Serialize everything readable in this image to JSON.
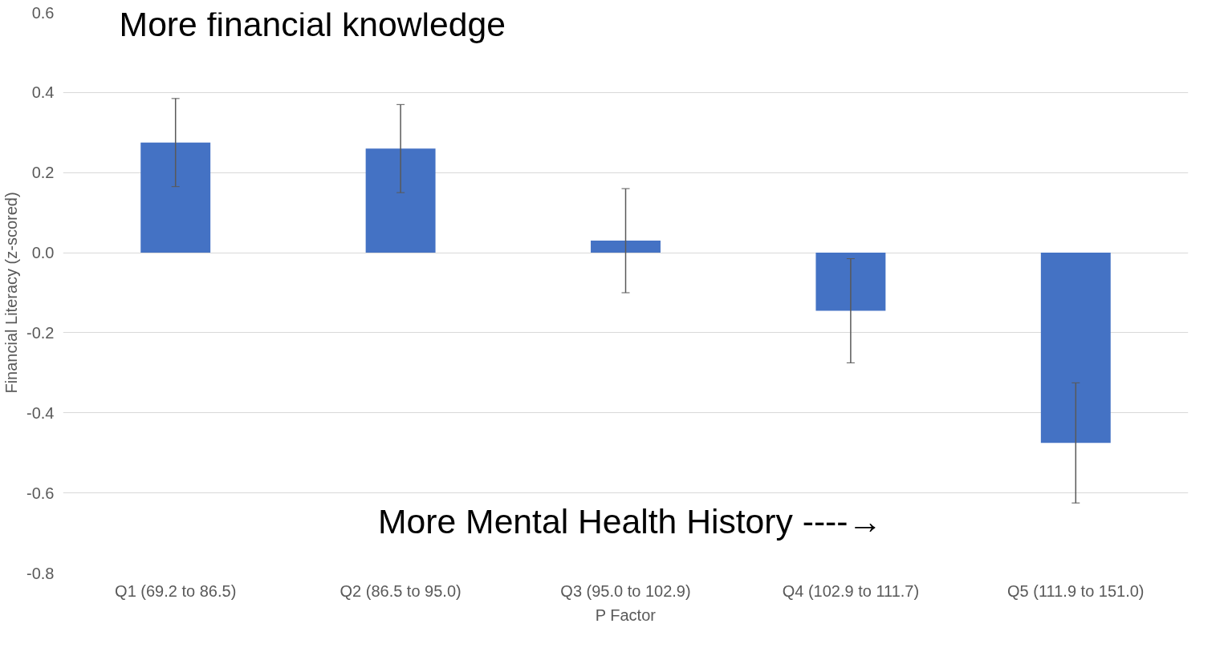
{
  "chart_data": {
    "type": "bar",
    "xlabel": "P Factor",
    "ylabel": "Financial Literacy (z-scored)",
    "categories": [
      "Q1 (69.2 to 86.5)",
      "Q2 (86.5 to 95.0)",
      "Q3 (95.0 to 102.9)",
      "Q4 (102.9 to 111.7)",
      "Q5 (111.9 to 151.0)"
    ],
    "values": [
      0.275,
      0.26,
      0.03,
      -0.145,
      -0.475
    ],
    "errors": [
      0.11,
      0.11,
      0.13,
      0.13,
      0.15
    ],
    "color": "#4472c4",
    "ylim": [
      -0.8,
      0.6
    ],
    "yticks": [
      {
        "value": -0.8,
        "label": "-0.8"
      },
      {
        "value": -0.6,
        "label": "-0.6"
      },
      {
        "value": -0.4,
        "label": "-0.4"
      },
      {
        "value": -0.2,
        "label": "-0.2"
      },
      {
        "value": 0,
        "label": "0.0"
      },
      {
        "value": 0.2,
        "label": "0.2"
      },
      {
        "value": 0.4,
        "label": "0.4"
      },
      {
        "value": 0.6,
        "label": "0.6"
      }
    ],
    "grid": "y",
    "annotations": [
      "More financial knowledge",
      "More Mental Health History ----→"
    ]
  }
}
